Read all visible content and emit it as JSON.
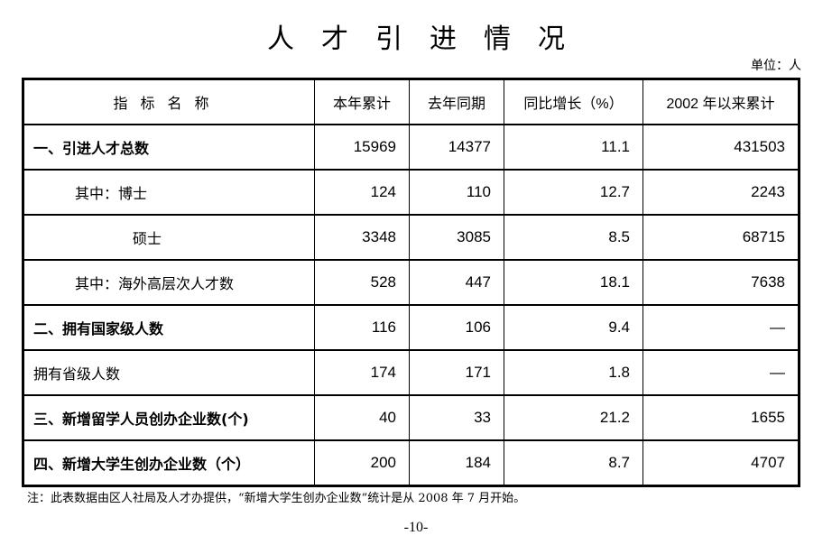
{
  "title": "人才引进情况",
  "unit": "单位：人",
  "headers": [
    "指标名称",
    "本年累计",
    "去年同期",
    "同比增长（%）",
    "2002 年以来累计"
  ],
  "rows": [
    {
      "name": "一、引进人才总数",
      "v": [
        "15969",
        "14377",
        "11.1",
        "431503"
      ]
    },
    {
      "name": "其中：博士",
      "v": [
        "124",
        "110",
        "12.7",
        "2243"
      ]
    },
    {
      "name": "硕士",
      "v": [
        "3348",
        "3085",
        "8.5",
        "68715"
      ]
    },
    {
      "name": "其中：海外高层次人才数",
      "v": [
        "528",
        "447",
        "18.1",
        "7638"
      ]
    },
    {
      "name": "二、拥有国家级人数",
      "v": [
        "116",
        "106",
        "9.4",
        "—"
      ]
    },
    {
      "name": "拥有省级人数",
      "v": [
        "174",
        "171",
        "1.8",
        "—"
      ]
    },
    {
      "name": "三、新增留学人员创办企业数(个)",
      "v": [
        "40",
        "33",
        "21.2",
        "1655"
      ]
    },
    {
      "name": "四、新增大学生创办企业数（个）",
      "v": [
        "200",
        "184",
        "8.7",
        "4707"
      ]
    }
  ],
  "note": "注：此表数据由区人社局及人才办提供，“新增大学生创办企业数”统计是从 2008 年 7 月开始。",
  "page_number": "-10-"
}
